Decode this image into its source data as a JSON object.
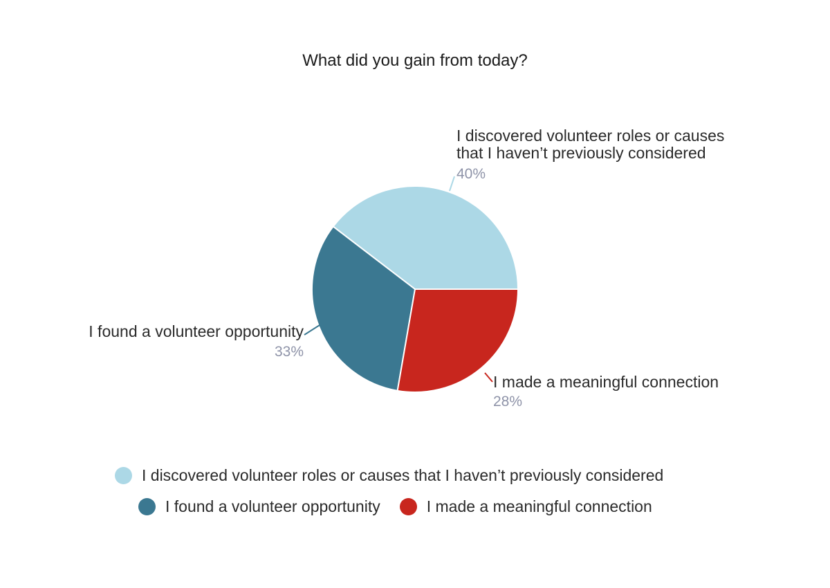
{
  "chart_data": {
    "type": "pie",
    "title": "What did you gain from today?",
    "slices": [
      {
        "label": "I discovered volunteer roles or causes that I haven’t previously considered",
        "label_lines": [
          "I discovered volunteer roles or causes",
          "that I haven’t previously considered"
        ],
        "value": 40,
        "display": "40%",
        "color": "#acd8e6"
      },
      {
        "label": "I found a volunteer opportunity",
        "label_lines": [
          "I found a volunteer opportunity"
        ],
        "value": 33,
        "display": "33%",
        "color": "#3b7891"
      },
      {
        "label": "I made a meaningful connection",
        "label_lines": [
          "I made a meaningful connection"
        ],
        "value": 28,
        "display": "28%",
        "color": "#c8261e"
      }
    ],
    "legend": [
      {
        "label": "I discovered volunteer roles or causes that I haven’t previously considered",
        "color": "#acd8e6"
      },
      {
        "label": "I found a volunteer opportunity",
        "color": "#3b7891"
      },
      {
        "label": "I made a meaningful connection",
        "color": "#c8261e"
      }
    ],
    "legend_position": "bottom",
    "start_angle": "3 o'clock, counter-clockwise"
  }
}
